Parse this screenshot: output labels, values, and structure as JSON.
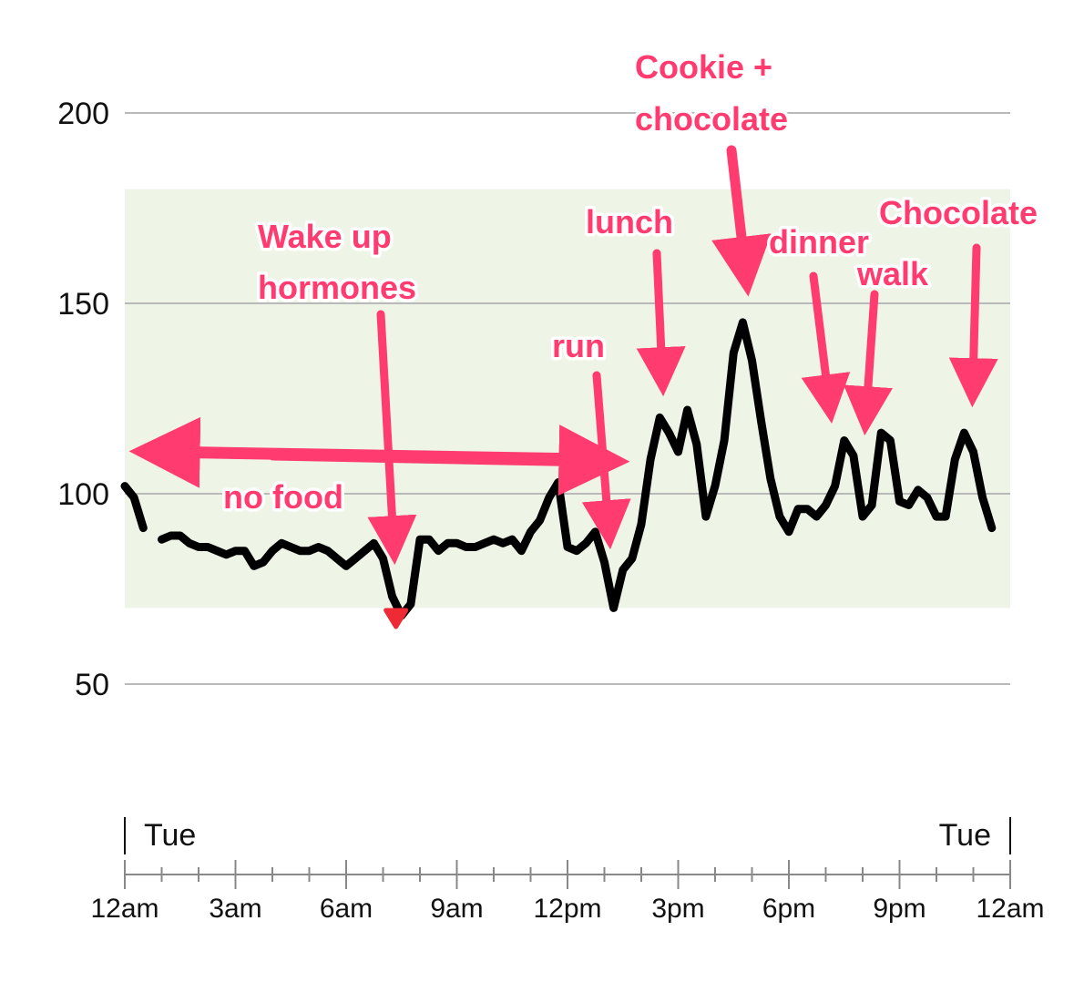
{
  "chart_data": {
    "type": "line",
    "title": "",
    "xlabel": "",
    "ylabel": "",
    "ylim": [
      0,
      230
    ],
    "grid": true,
    "target_range": [
      70,
      180
    ],
    "yticks": [
      "50",
      "100",
      "150",
      "200"
    ],
    "xticks": [
      "12am",
      "3am",
      "6am",
      "9am",
      "12pm",
      "3pm",
      "6pm",
      "9pm",
      "12am"
    ],
    "day_labels": {
      "start": "Tue",
      "end": "Tue"
    },
    "colors": {
      "line": "#000000",
      "low_point": "#ee2a35",
      "range_fill": "#eef5e6",
      "annotation": "#ff3b70"
    },
    "series": [
      {
        "x": [
          0,
          0.25,
          0.5,
          0.75,
          1,
          1.25,
          1.5,
          1.75,
          2,
          2.25,
          2.5,
          2.75,
          3,
          3.25,
          3.5,
          3.75,
          4,
          4.25,
          4.5,
          4.75,
          5,
          5.25,
          5.5,
          5.75,
          6,
          6.25,
          6.5,
          6.75,
          7,
          7.25,
          7.5,
          7.75,
          8,
          8.25,
          8.5,
          8.75,
          9,
          9.25,
          9.5,
          9.75,
          10,
          10.25,
          10.5,
          10.75,
          11,
          11.25,
          11.5,
          11.75,
          12,
          12.25,
          12.5,
          12.75,
          13,
          13.25,
          13.5,
          13.75,
          14,
          14.25,
          14.5,
          14.75,
          15,
          15.25,
          15.5,
          15.75,
          16,
          16.25,
          16.5,
          16.75,
          17,
          17.25,
          17.5,
          17.75,
          18,
          18.25,
          18.5,
          18.75,
          19,
          19.25,
          19.5,
          19.75,
          20,
          20.25,
          20.5,
          20.75,
          21,
          21.25,
          21.5,
          21.75,
          22,
          22.25,
          22.5,
          22.75,
          23,
          23.25,
          23.5
        ],
        "y": [
          102,
          99,
          91,
          null,
          88,
          89,
          89,
          87,
          86,
          86,
          85,
          84,
          85,
          85,
          81,
          82,
          85,
          87,
          86,
          85,
          85,
          86,
          85,
          83,
          81,
          83,
          85,
          87,
          83,
          73,
          68,
          71,
          88,
          88,
          85,
          87,
          87,
          86,
          86,
          87,
          88,
          87,
          88,
          85,
          90,
          93,
          99,
          103,
          86,
          85,
          87,
          90,
          82,
          70,
          80,
          83,
          92,
          109,
          120,
          116,
          111,
          122,
          113,
          94,
          102,
          114,
          137,
          145,
          135,
          119,
          104,
          94,
          90,
          96,
          96,
          94,
          97,
          102,
          114,
          110,
          94,
          97,
          116,
          114,
          98,
          97,
          101,
          99,
          94,
          94,
          109,
          116,
          111,
          99,
          91
        ]
      }
    ],
    "low_points": [
      {
        "x": 7.35,
        "y": 67
      }
    ],
    "annotations": {
      "wake_line1": "Wake up",
      "wake_line2": "hormones",
      "no_food": "no food",
      "run": "run",
      "lunch": "lunch",
      "cookie_line1": "Cookie +",
      "cookie_line2": "chocolate",
      "dinner": "dinner",
      "walk": "walk",
      "chocolate": "Chocolate"
    }
  }
}
